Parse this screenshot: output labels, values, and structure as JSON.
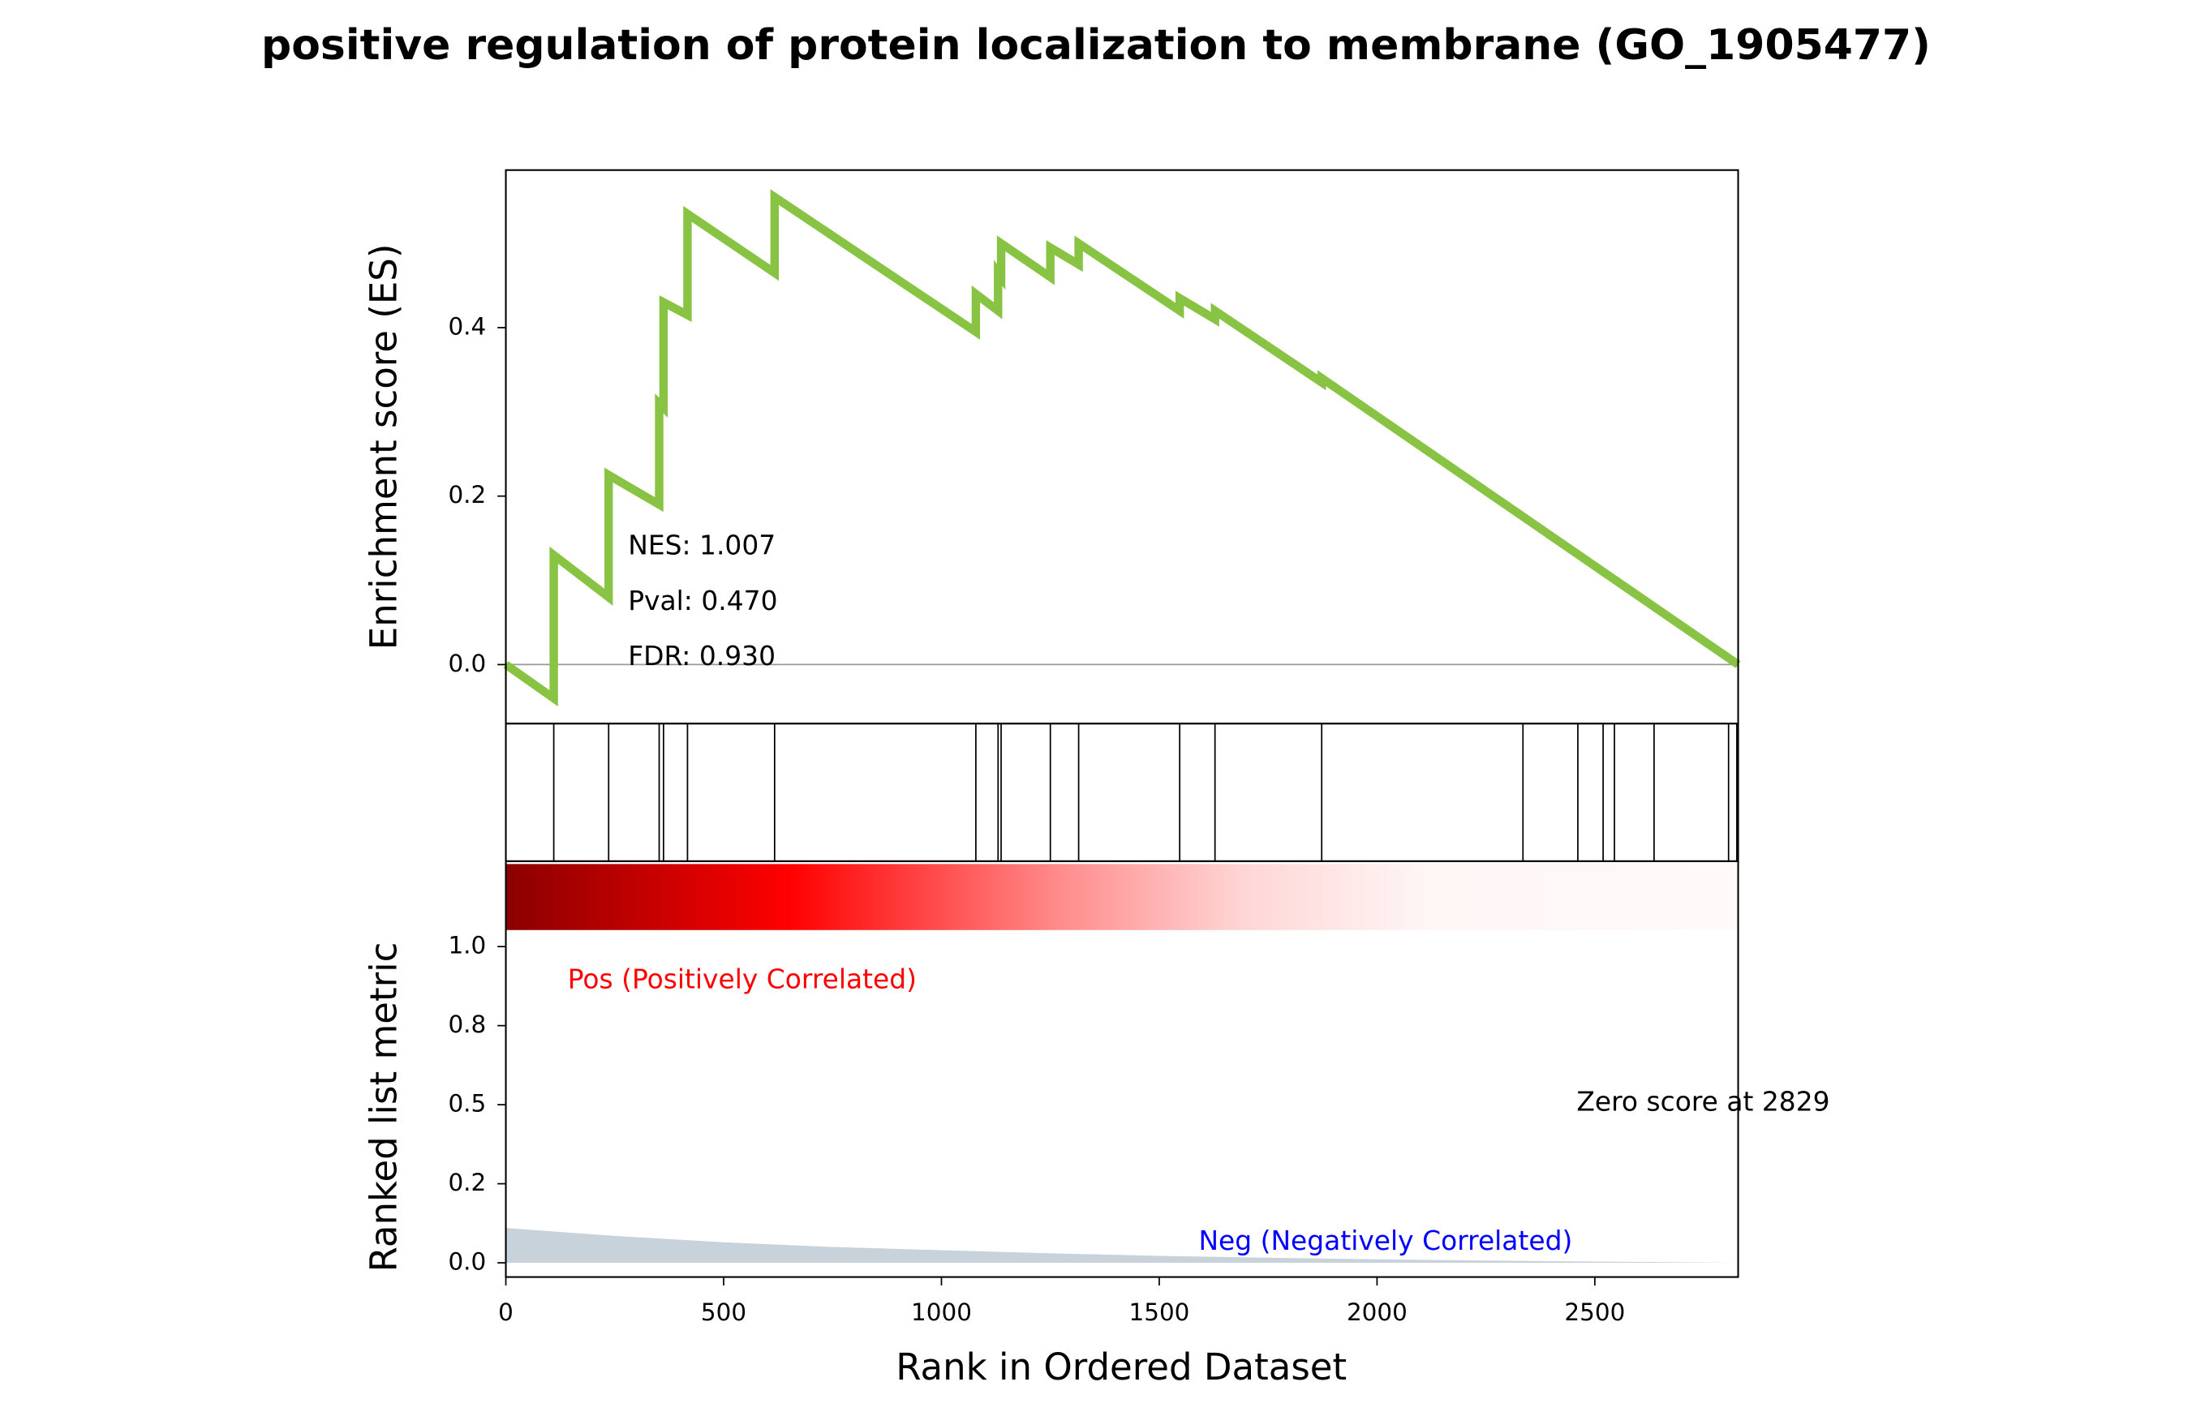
{
  "chart_data": [
    {
      "type": "line",
      "title": "positive regulation of protein localization to membrane (GO_1905477)",
      "ylabel": "Enrichment score (ES)",
      "color": "#88c343",
      "x": [
        0,
        110,
        110,
        236,
        236,
        352,
        352,
        362,
        362,
        417,
        417,
        617,
        617,
        1079,
        1079,
        1130,
        1130,
        1137,
        1137,
        1250,
        1250,
        1315,
        1315,
        1547,
        1547,
        1628,
        1628,
        1873,
        1873,
        2829
      ],
      "values": [
        0,
        -0.04,
        0.13,
        0.08,
        0.225,
        0.19,
        0.31,
        0.305,
        0.43,
        0.415,
        0.535,
        0.465,
        0.555,
        0.395,
        0.44,
        0.42,
        0.465,
        0.46,
        0.5,
        0.46,
        0.495,
        0.475,
        0.5,
        0.42,
        0.435,
        0.41,
        0.42,
        0.335,
        0.34,
        0
      ],
      "xlim": [
        0,
        2829
      ],
      "ylim": [
        -0.07,
        0.587
      ],
      "yticks": [
        {
          "value": 0,
          "label": "0.0"
        },
        {
          "value": 0.2,
          "label": "0.2"
        },
        {
          "value": 0.4,
          "label": "0.4"
        }
      ],
      "annotations": [
        "NES: 1.007",
        "Pval: 0.470",
        "FDR: 0.930"
      ]
    },
    {
      "type": "rug",
      "x": [
        110,
        236,
        352,
        362,
        417,
        617,
        1079,
        1130,
        1137,
        1250,
        1315,
        1547,
        1628,
        1873,
        2335,
        2461,
        2519,
        2545,
        2636,
        2807,
        2826
      ],
      "xlim": [
        0,
        2829
      ]
    },
    {
      "type": "area",
      "ylabel": "Ranked list metric",
      "xlabel": "Rank in Ordered Dataset",
      "color": "#c8d2da",
      "x": [
        0,
        250,
        500,
        750,
        1000,
        1250,
        1500,
        1750,
        2000,
        2250,
        2500,
        2829
      ],
      "values": [
        0.11,
        0.085,
        0.065,
        0.05,
        0.04,
        0.03,
        0.022,
        0.016,
        0.011,
        0.007,
        0.004,
        0
      ],
      "xlim": [
        0,
        2829
      ],
      "ylim": [
        -0.045,
        1.27
      ],
      "xticks": [
        0,
        500,
        1000,
        1500,
        2000,
        2500
      ],
      "yticks": [
        {
          "value": 0,
          "label": "0.0"
        },
        {
          "value": 0.25,
          "label": "0.2"
        },
        {
          "value": 0.5,
          "label": "0.5"
        },
        {
          "value": 0.75,
          "label": "0.8"
        },
        {
          "value": 1.0,
          "label": "1.0"
        }
      ],
      "annotations": [
        {
          "text": "Pos (Positively Correlated)",
          "color": "#ff0000"
        },
        {
          "text": "Zero score at 2829",
          "color": "#000000"
        },
        {
          "text": "Neg (Negatively Correlated)",
          "color": "#0000ff"
        }
      ]
    }
  ]
}
